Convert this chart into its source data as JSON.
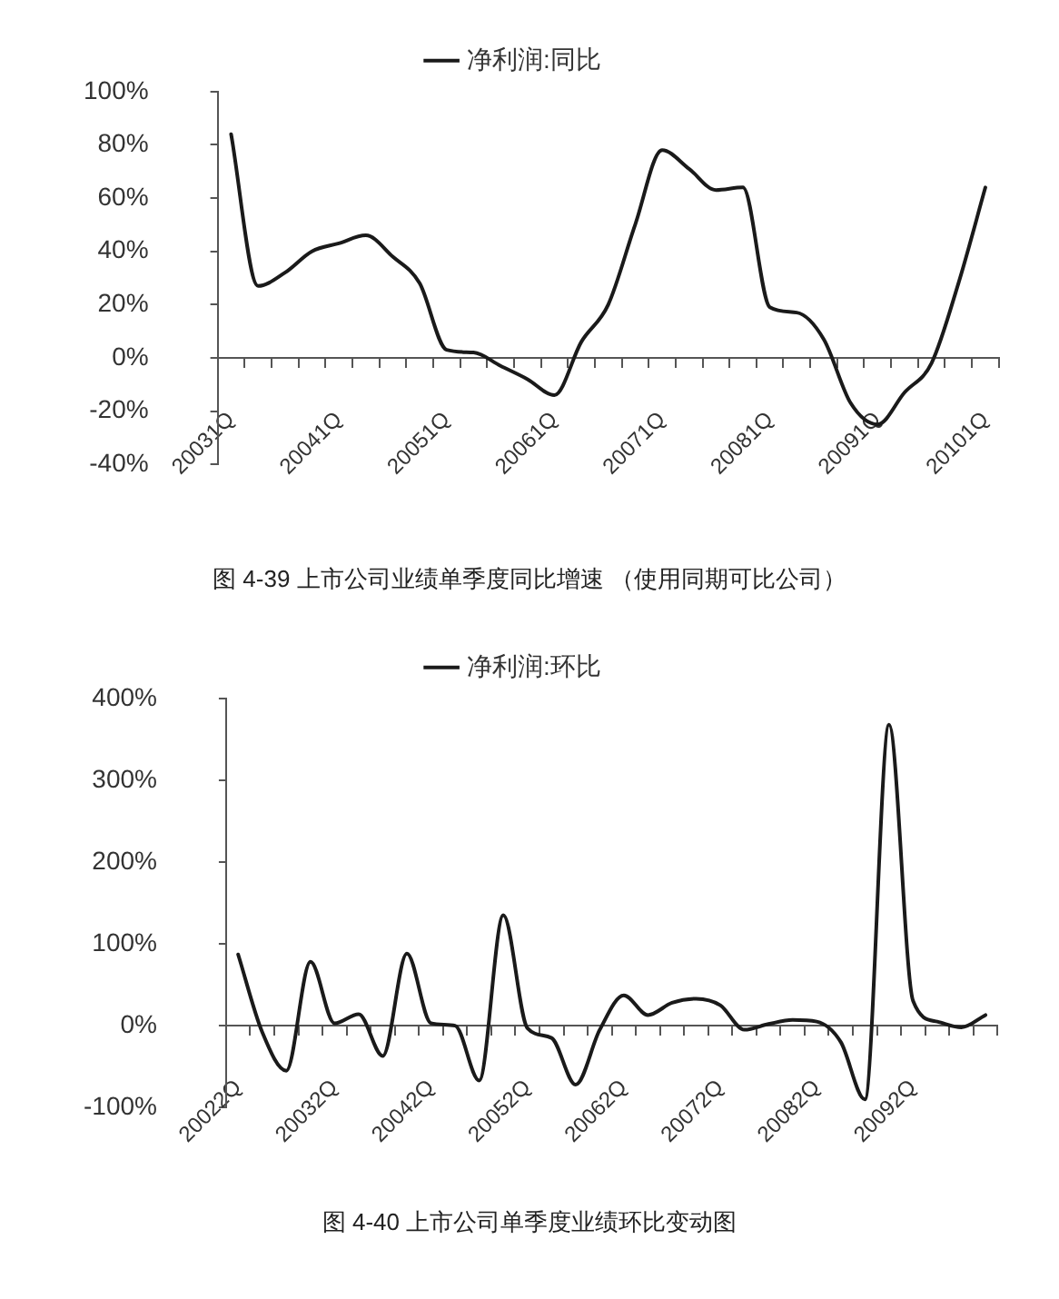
{
  "chart_data": [
    {
      "type": "line",
      "categories": [
        "20031Q",
        null,
        null,
        null,
        "20041Q",
        null,
        null,
        null,
        "20051Q",
        null,
        null,
        null,
        "20061Q",
        null,
        null,
        null,
        "20071Q",
        null,
        null,
        null,
        "20081Q",
        null,
        null,
        null,
        "20091Q",
        null,
        null,
        null,
        "20101Q"
      ],
      "series": [
        {
          "name": "净利润:同比",
          "color": "#1a1a1a",
          "values": [
            84,
            27,
            32,
            40,
            43,
            46,
            38,
            28,
            3,
            2,
            -3,
            -8,
            -14,
            6,
            20,
            50,
            78,
            71,
            63,
            64,
            19,
            17,
            7,
            -17,
            -25,
            -13,
            -2,
            28,
            64
          ]
        }
      ],
      "ylim": [
        -40,
        100
      ],
      "yticks": [
        {
          "value": -40,
          "label": "-40%"
        },
        {
          "value": -20,
          "label": "-20%"
        },
        {
          "value": 0,
          "label": "0%"
        },
        {
          "value": 20,
          "label": "20%"
        },
        {
          "value": 40,
          "label": "40%"
        },
        {
          "value": 60,
          "label": "60%"
        },
        {
          "value": 80,
          "label": "80%"
        },
        {
          "value": 100,
          "label": "100%"
        }
      ],
      "legend": "top",
      "grid": false,
      "marker": "none",
      "line_style": "solid",
      "annotations": [
        "图 4-39   上市公司业绩单季度同比增速 （使用同期可比公司）"
      ]
    },
    {
      "type": "line",
      "categories": [
        "20022Q",
        null,
        null,
        null,
        "20032Q",
        null,
        null,
        null,
        "20042Q",
        null,
        null,
        null,
        "20052Q",
        null,
        null,
        null,
        "20062Q",
        null,
        null,
        null,
        "20072Q",
        null,
        null,
        null,
        "20082Q",
        null,
        null,
        null,
        "20092Q",
        null,
        null,
        null
      ],
      "series": [
        {
          "name": "净利润:环比",
          "color": "#1a1a1a",
          "values": [
            87,
            -8,
            -55,
            78,
            3,
            14,
            -37,
            88,
            3,
            0,
            -67,
            135,
            -3,
            -15,
            -72,
            -5,
            37,
            13,
            28,
            33,
            25,
            -5,
            2,
            7,
            5,
            -20,
            -90,
            368,
            30,
            5,
            -2,
            13
          ]
        }
      ],
      "ylim": [
        -100,
        400
      ],
      "yticks": [
        {
          "value": -100,
          "label": "-100%"
        },
        {
          "value": 0,
          "label": "0%"
        },
        {
          "value": 100,
          "label": "100%"
        },
        {
          "value": 200,
          "label": "200%"
        },
        {
          "value": 300,
          "label": "300%"
        },
        {
          "value": 400,
          "label": "400%"
        }
      ],
      "legend": "top",
      "grid": false,
      "marker": "none",
      "line_style": "solid",
      "annotations": [
        "图 4-40   上市公司单季度业绩环比变动图"
      ]
    }
  ]
}
